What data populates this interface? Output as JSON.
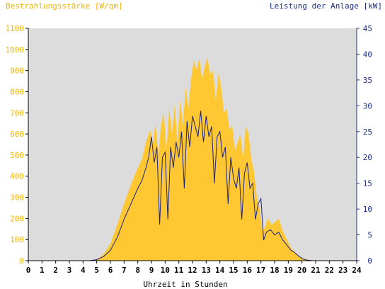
{
  "chart_data": {
    "type": "area",
    "left_axis_label": "Bestrahlungsstärke [W/qm]",
    "right_axis_label": "Leistung der Anlage [kW]",
    "xlabel": "Uhrzeit in Stunden",
    "xlim": [
      0,
      24
    ],
    "ylim_left": [
      0,
      1100
    ],
    "ylim_right": [
      0,
      45
    ],
    "x_ticks": [
      "0",
      "1",
      "2",
      "3",
      "4",
      "5",
      "6",
      "7",
      "8",
      "9",
      "10",
      "11",
      "12",
      "13",
      "14",
      "15",
      "16",
      "17",
      "18",
      "19",
      "20",
      "21",
      "22",
      "23",
      "24"
    ],
    "y_left_ticks": [
      "0",
      "100",
      "200",
      "300",
      "400",
      "500",
      "600",
      "700",
      "800",
      "900",
      "1000",
      "1100"
    ],
    "y_right_ticks": [
      "0",
      "5",
      "10",
      "15",
      "20",
      "25",
      "30",
      "35",
      "40",
      "45"
    ],
    "grid": false,
    "colors": {
      "plot_background": "#dcdcdc",
      "irradiance_fill": "#ffc832",
      "power_line": "#1a237e",
      "left_axis_text": "#f0b400",
      "right_axis_text": "#1a2d80",
      "axis_line": "#000000"
    },
    "series": [
      {
        "name": "Bestrahlungsstärke [W/qm]",
        "axis": "left",
        "style": "area",
        "x": [
          0,
          4.5,
          5,
          5.5,
          6,
          6.5,
          7,
          7.5,
          8,
          8.3,
          8.6,
          8.9,
          9.1,
          9.3,
          9.5,
          9.7,
          9.9,
          10.1,
          10.3,
          10.5,
          10.7,
          10.9,
          11.1,
          11.3,
          11.5,
          11.7,
          11.9,
          12.1,
          12.3,
          12.5,
          12.7,
          12.9,
          13.1,
          13.3,
          13.5,
          13.7,
          13.9,
          14.1,
          14.3,
          14.5,
          14.7,
          14.9,
          15.1,
          15.3,
          15.5,
          15.7,
          15.9,
          16.1,
          16.3,
          16.5,
          16.7,
          16.9,
          17.1,
          17.3,
          17.5,
          17.8,
          18.0,
          18.3,
          18.6,
          18.9,
          19.2,
          19.5,
          19.8,
          20.1,
          20.4,
          20.8,
          21.2,
          24
        ],
        "values": [
          0,
          0,
          5,
          30,
          80,
          170,
          270,
          360,
          440,
          480,
          560,
          620,
          550,
          650,
          500,
          640,
          700,
          520,
          720,
          600,
          740,
          560,
          760,
          640,
          820,
          720,
          860,
          950,
          900,
          960,
          860,
          920,
          960,
          880,
          900,
          760,
          890,
          820,
          700,
          720,
          620,
          640,
          520,
          560,
          600,
          480,
          640,
          600,
          480,
          420,
          300,
          250,
          140,
          160,
          200,
          170,
          180,
          200,
          140,
          100,
          60,
          40,
          20,
          10,
          5,
          2,
          0,
          0
        ]
      },
      {
        "name": "Leistung der Anlage [kW]",
        "axis": "right",
        "style": "line",
        "x": [
          0,
          4.5,
          5,
          5.5,
          6,
          6.5,
          7,
          7.5,
          8,
          8.3,
          8.6,
          8.8,
          9.0,
          9.2,
          9.4,
          9.6,
          9.8,
          10.0,
          10.2,
          10.4,
          10.6,
          10.8,
          11.0,
          11.2,
          11.4,
          11.6,
          11.8,
          12.0,
          12.2,
          12.4,
          12.6,
          12.8,
          13.0,
          13.2,
          13.4,
          13.6,
          13.8,
          14.0,
          14.2,
          14.4,
          14.6,
          14.8,
          15.0,
          15.2,
          15.4,
          15.6,
          15.8,
          16.0,
          16.2,
          16.4,
          16.6,
          16.8,
          17.0,
          17.2,
          17.4,
          17.7,
          18.0,
          18.3,
          18.6,
          18.9,
          19.2,
          19.5,
          19.8,
          20.1,
          20.4,
          20.8,
          24
        ],
        "values": [
          0,
          0,
          0.2,
          0.8,
          2,
          4.5,
          8,
          11,
          14,
          15.5,
          18,
          20,
          24,
          19,
          22,
          7,
          20,
          21,
          8,
          22,
          18,
          23,
          20,
          25,
          14,
          27,
          22,
          28,
          26,
          24,
          29,
          23,
          28,
          24,
          26,
          15,
          24,
          25,
          20,
          22,
          11,
          20,
          16,
          14,
          18,
          8,
          17,
          19,
          14,
          15,
          8,
          11,
          12,
          4,
          5.5,
          6,
          5,
          5.5,
          4,
          3,
          2,
          1.5,
          0.8,
          0.3,
          0.1,
          0,
          0
        ]
      }
    ]
  }
}
